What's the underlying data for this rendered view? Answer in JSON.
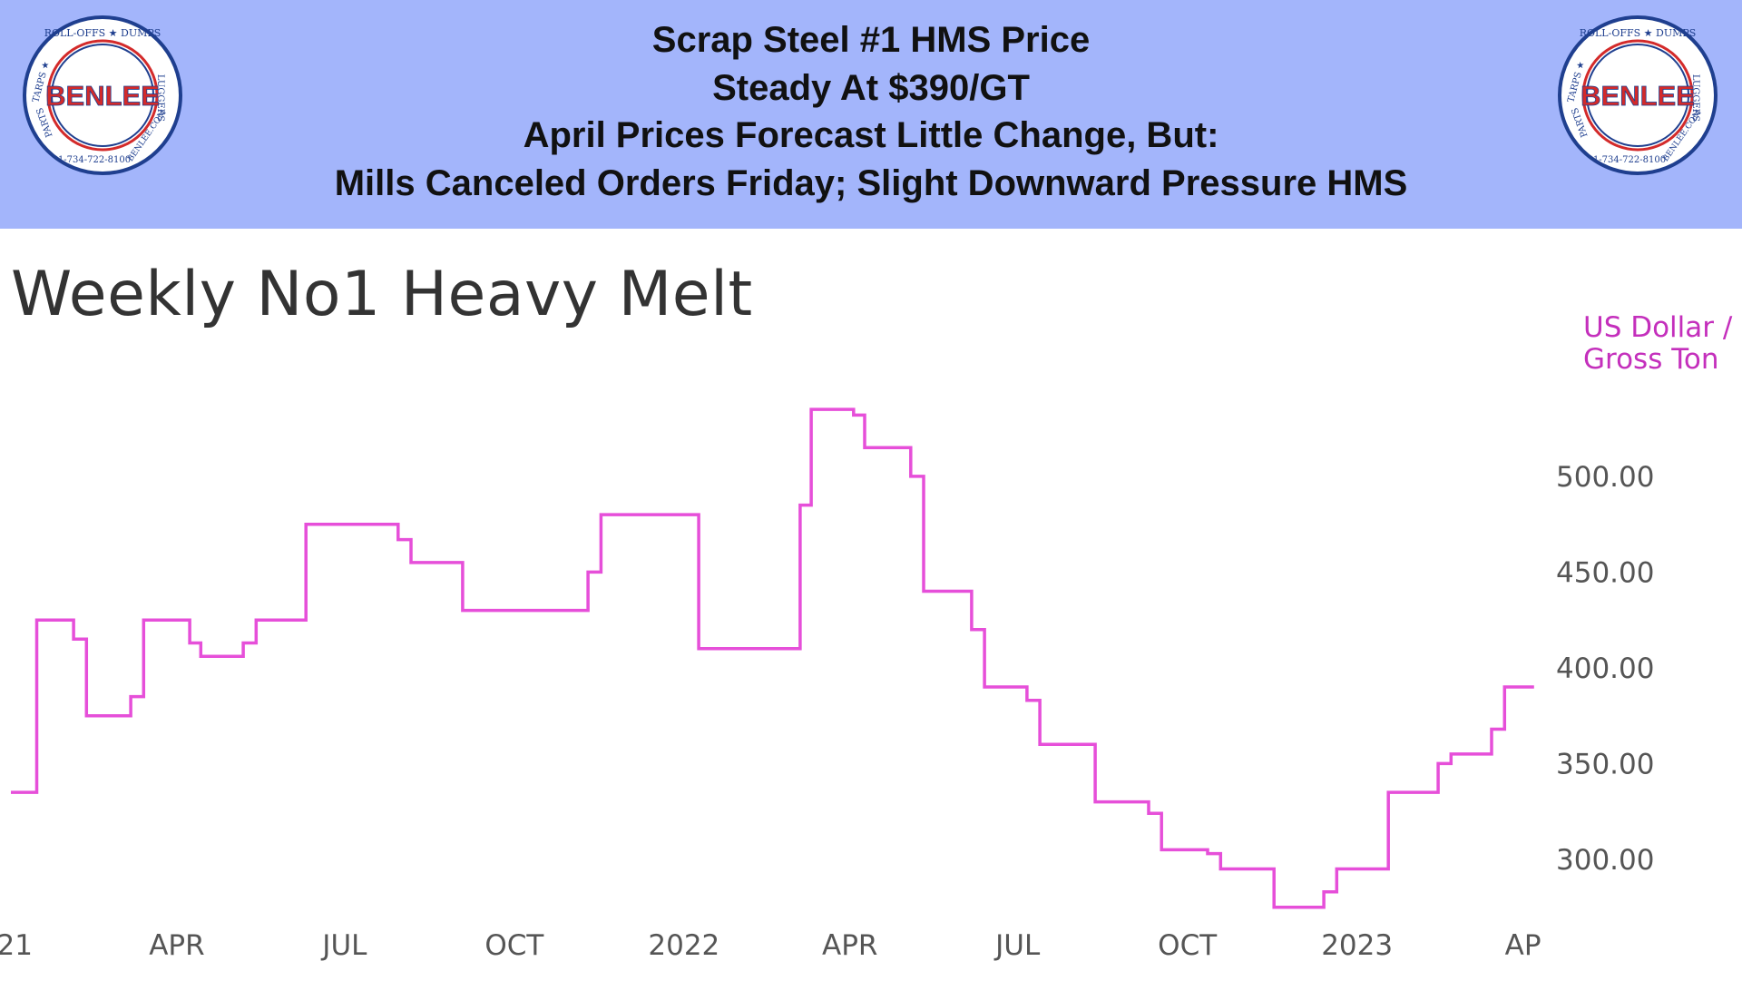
{
  "header": {
    "lines": [
      "Scrap Steel #1 HMS Price",
      "Steady At $390/GT",
      "April Prices Forecast Little Change, But:",
      "Mills Canceled Orders Friday; Slight Downward Pressure HMS"
    ],
    "logo": {
      "brand": "BENLEE",
      "ring_text_top": "ROLL-OFFS ★ DUMPS",
      "ring_text_right": "LUGGERS",
      "ring_text_left": "TARPS ★",
      "ring_text_left2": "PARTS",
      "ring_text_bottom": "1-734-722-8100",
      "ring_text_bottom_right": "BENLEE.COM",
      "ring_color": "#1f3f8f",
      "brand_color": "#d32a2a"
    }
  },
  "colors": {
    "banner": "#a3b5fb",
    "line": "#e64fd9",
    "unit_text": "#c42fbc",
    "tick_text": "#555555"
  },
  "chart_data": {
    "type": "line",
    "title": "Weekly No1 Heavy Melt",
    "ylabel": [
      "US Dollar /",
      "Gross Ton"
    ],
    "y_ticks": [
      300,
      350,
      400,
      450,
      500
    ],
    "y_tick_labels": [
      "300.00",
      "350.00",
      "400.00",
      "450.00",
      "500.00"
    ],
    "ylim": [
      272,
      545
    ],
    "xlim": [
      "2021-01-01",
      "2023-04-14"
    ],
    "x_ticks": [
      "2021-01-01",
      "2021-04-01",
      "2021-07-01",
      "2021-10-01",
      "2022-01-01",
      "2022-04-01",
      "2022-07-01",
      "2022-10-01",
      "2023-01-01",
      "2023-04-01"
    ],
    "x_tick_labels": [
      "'21",
      "APR",
      "JUL",
      "OCT",
      "2022",
      "APR",
      "JUL",
      "OCT",
      "2023",
      "AP"
    ],
    "step": "after",
    "grid": false,
    "series": [
      {
        "name": "",
        "color": "#e64fd9",
        "points": [
          [
            "2021-01-01",
            335
          ],
          [
            "2021-01-15",
            425
          ],
          [
            "2021-02-04",
            415
          ],
          [
            "2021-02-11",
            375
          ],
          [
            "2021-03-07",
            385
          ],
          [
            "2021-03-14",
            425
          ],
          [
            "2021-04-08",
            413
          ],
          [
            "2021-04-14",
            406
          ],
          [
            "2021-05-07",
            413
          ],
          [
            "2021-05-14",
            425
          ],
          [
            "2021-06-10",
            475
          ],
          [
            "2021-07-30",
            467
          ],
          [
            "2021-08-06",
            455
          ],
          [
            "2021-09-03",
            430
          ],
          [
            "2021-11-10",
            450
          ],
          [
            "2021-11-17",
            480
          ],
          [
            "2022-01-09",
            410
          ],
          [
            "2022-03-05",
            485
          ],
          [
            "2022-03-11",
            535
          ],
          [
            "2022-04-03",
            532
          ],
          [
            "2022-04-09",
            515
          ],
          [
            "2022-05-04",
            500
          ],
          [
            "2022-05-11",
            440
          ],
          [
            "2022-06-06",
            420
          ],
          [
            "2022-06-13",
            390
          ],
          [
            "2022-07-06",
            383
          ],
          [
            "2022-07-13",
            360
          ],
          [
            "2022-08-12",
            330
          ],
          [
            "2022-09-10",
            324
          ],
          [
            "2022-09-17",
            305
          ],
          [
            "2022-10-12",
            303
          ],
          [
            "2022-10-19",
            295
          ],
          [
            "2022-11-17",
            275
          ],
          [
            "2022-12-14",
            283
          ],
          [
            "2022-12-21",
            295
          ],
          [
            "2023-01-18",
            335
          ],
          [
            "2023-02-14",
            350
          ],
          [
            "2023-02-21",
            355
          ],
          [
            "2023-03-15",
            368
          ],
          [
            "2023-03-22",
            390
          ],
          [
            "2023-04-07",
            390
          ]
        ]
      }
    ]
  }
}
